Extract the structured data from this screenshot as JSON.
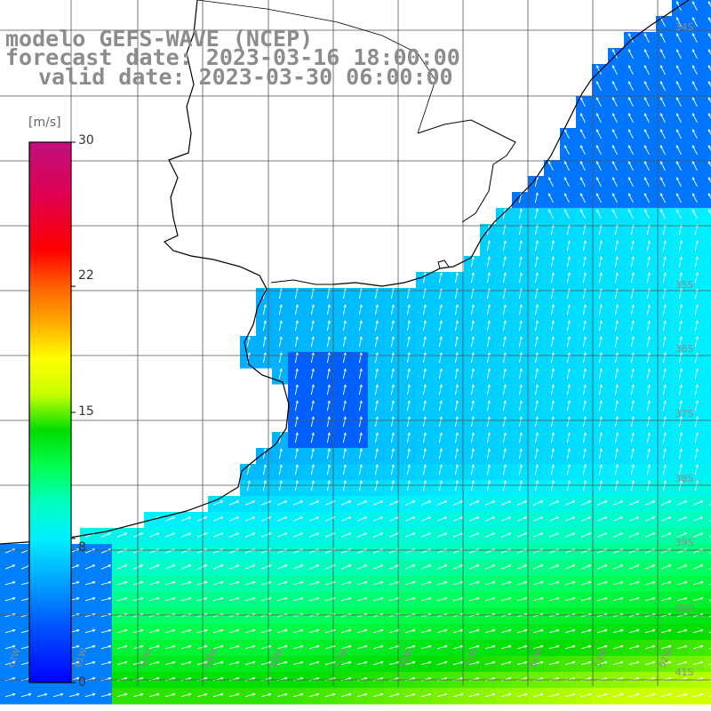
{
  "header": {
    "model": "modelo GEFS-WAVE (NCEP)",
    "forecast": "forecast date: 2023-03-16 18:00:00",
    "valid": "valid date: 2023-03-30 06:00:00"
  },
  "colorbar": {
    "unit": "[m/s]",
    "ticks": [
      "30",
      "22",
      "15",
      "8",
      "0"
    ],
    "tick_values": [
      30,
      22,
      15,
      8,
      0
    ],
    "min": 0,
    "max": 30,
    "colors": [
      "#0000ff",
      "#0055ff",
      "#00a0ff",
      "#00e0ff",
      "#00ffd0",
      "#00ff66",
      "#00dd00",
      "#ccff00",
      "#ffff00",
      "#ffaa00",
      "#ff6000",
      "#ff0000",
      "#e00060",
      "#c0107f"
    ]
  },
  "lat_labels": [
    "34S",
    "35S",
    "36S",
    "37S",
    "38S",
    "39S",
    "40S",
    "41S"
  ],
  "lon_labels": [
    "62W",
    "61W",
    "60W",
    "59W",
    "58W",
    "57W",
    "56W",
    "55W",
    "54W",
    "53W",
    "52W",
    "51W"
  ],
  "colors": {
    "land": "#ffffff",
    "grid": "#555555",
    "coast": "#000000",
    "arrow": "#ffffff",
    "header": "#8c8c8c"
  }
}
